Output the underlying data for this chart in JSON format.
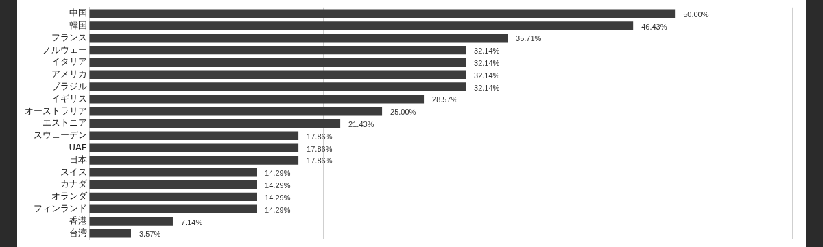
{
  "chart_data": {
    "type": "bar",
    "orientation": "horizontal",
    "categories": [
      "中国",
      "韓国",
      "フランス",
      "ノルウェー",
      "イタリア",
      "アメリカ",
      "ブラジル",
      "イギリス",
      "オーストラリア",
      "エストニア",
      "スウェーデン",
      "UAE",
      "日本",
      "スイス",
      "カナダ",
      "オランダ",
      "フィンランド",
      "香港",
      "台湾"
    ],
    "values": [
      50,
      46.43,
      35.71,
      32.14,
      32.14,
      32.14,
      32.14,
      28.57,
      25,
      21.43,
      17.86,
      17.86,
      17.86,
      14.29,
      14.29,
      14.29,
      14.29,
      7.14,
      3.57
    ],
    "value_labels": [
      "50.00%",
      "46.43%",
      "35.71%",
      "32.14%",
      "32.14%",
      "32.14%",
      "32.14%",
      "28.57%",
      "25.00%",
      "21.43%",
      "17.86%",
      "17.86%",
      "17.86%",
      "14.29%",
      "14.29%",
      "14.29%",
      "14.29%",
      "7.14%",
      "3.57%"
    ],
    "color": "#3c3c3c",
    "xlim": [
      0,
      60
    ],
    "xticks": [
      {
        "value": 0,
        "label": null
      },
      {
        "value": 20,
        "label": null
      },
      {
        "value": 40,
        "label": null
      },
      {
        "value": 60,
        "label": null
      }
    ],
    "grid": "x",
    "tick_labels": "y"
  }
}
